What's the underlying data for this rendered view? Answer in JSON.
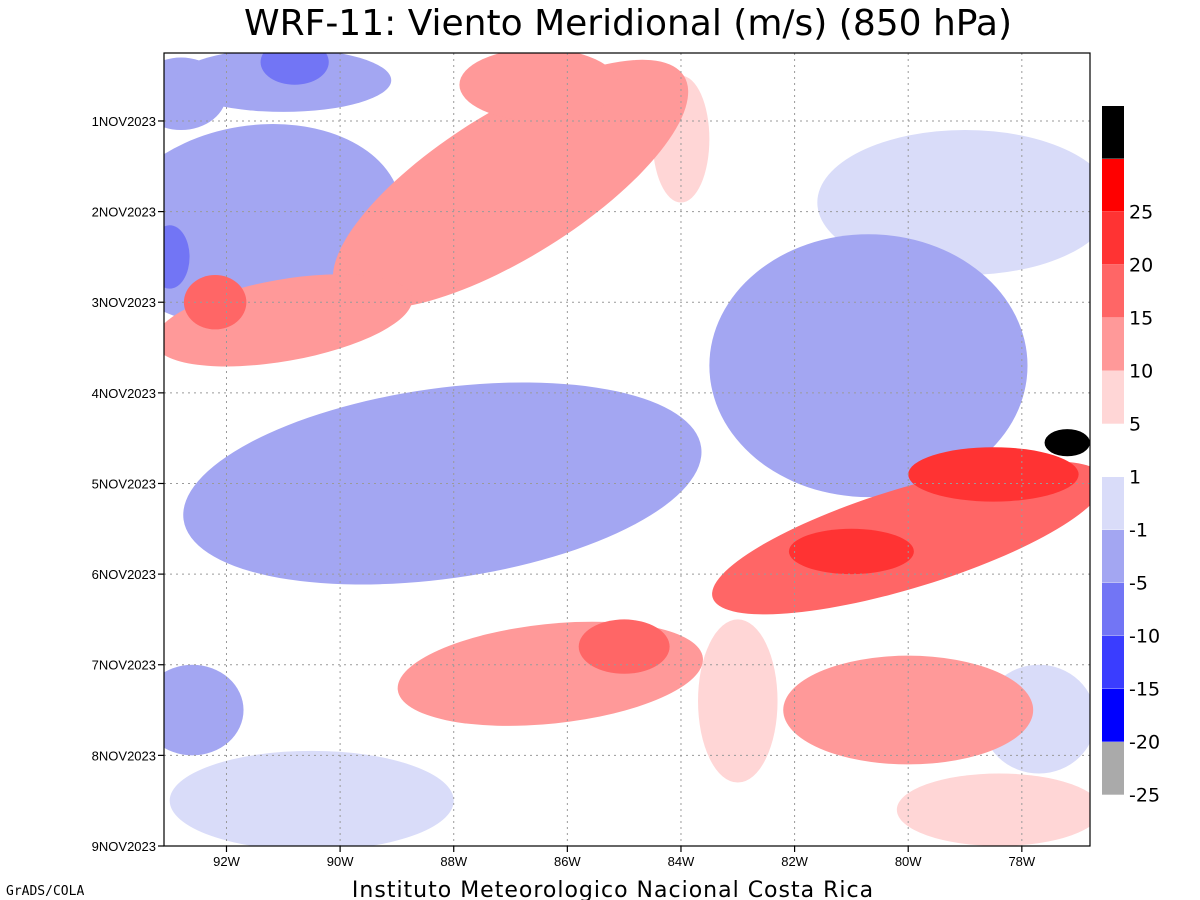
{
  "chart_data": {
    "type": "heatmap",
    "title": "WRF-11: Viento Meridional (m/s) (850 hPa)",
    "footer": "Instituto Meteorologico Nacional Costa Rica",
    "credit": "GrADS/COLA",
    "x_axis": {
      "range": [
        -93.1,
        -76.8
      ],
      "ticks": [
        {
          "value": -92,
          "label": "92W"
        },
        {
          "value": -90,
          "label": "90W"
        },
        {
          "value": -88,
          "label": "88W"
        },
        {
          "value": -86,
          "label": "86W"
        },
        {
          "value": -84,
          "label": "84W"
        },
        {
          "value": -82,
          "label": "82W"
        },
        {
          "value": -80,
          "label": "80W"
        },
        {
          "value": -78,
          "label": "78W"
        }
      ]
    },
    "y_axis": {
      "range": [
        0.25,
        9.0
      ],
      "reversed": true,
      "ticks": [
        {
          "value": 1,
          "label": "1NOV2023"
        },
        {
          "value": 2,
          "label": "2NOV2023"
        },
        {
          "value": 3,
          "label": "3NOV2023"
        },
        {
          "value": 4,
          "label": "4NOV2023"
        },
        {
          "value": 5,
          "label": "5NOV2023"
        },
        {
          "value": 6,
          "label": "6NOV2023"
        },
        {
          "value": 7,
          "label": "7NOV2023"
        },
        {
          "value": 8,
          "label": "8NOV2023"
        },
        {
          "value": 9,
          "label": "9NOV2023"
        }
      ]
    },
    "grid": true,
    "colorbar": {
      "placement": "right",
      "bins": [
        {
          "color": "#000000",
          "label": null
        },
        {
          "color": "#ff0000",
          "label": "25"
        },
        {
          "color": "#ff3333",
          "label": "20"
        },
        {
          "color": "#ff6666",
          "label": "15"
        },
        {
          "color": "#ff9999",
          "label": "10"
        },
        {
          "color": "#ffd6d6",
          "label": "5"
        },
        {
          "color": "#ffffff",
          "label": "1"
        },
        {
          "color": "#d9dcf9",
          "label": "-1"
        },
        {
          "color": "#a3a6f2",
          "label": "-5"
        },
        {
          "color": "#7275f5",
          "label": "-10"
        },
        {
          "color": "#3a3dff",
          "label": "-15"
        },
        {
          "color": "#0000ff",
          "label": "-20"
        },
        {
          "color": "#aaaaaa",
          "label": "-25"
        }
      ]
    },
    "features": [
      {
        "type": "v",
        "lon": -91.5,
        "t": 2.15,
        "rx": 2.6,
        "rt": 1.1,
        "angle": -9,
        "value": -6
      },
      {
        "type": "v",
        "lon": -91.0,
        "t": 0.55,
        "rx": 1.9,
        "rt": 0.35,
        "angle": 0,
        "value": -9
      },
      {
        "type": "v",
        "lon": -92.8,
        "t": 0.7,
        "rx": 0.8,
        "rt": 0.4,
        "angle": 0,
        "value": -7
      },
      {
        "type": "v",
        "lon": -90.8,
        "t": 0.35,
        "rx": 0.6,
        "rt": 0.25,
        "angle": 0,
        "value": -12
      },
      {
        "type": "v",
        "lon": -93.0,
        "t": 2.5,
        "rx": 0.35,
        "rt": 0.35,
        "angle": 0,
        "value": -14
      },
      {
        "type": "v",
        "lon": -88.2,
        "t": 5.0,
        "rx": 4.6,
        "rt": 1.05,
        "angle": -8,
        "value": -9
      },
      {
        "type": "v",
        "lon": -89.0,
        "t": 5.55,
        "rx": 1.8,
        "rt": 0.4,
        "angle": 0,
        "value": -8
      },
      {
        "type": "v",
        "lon": -85.8,
        "t": 4.7,
        "rx": 1.6,
        "rt": 0.5,
        "angle": 0,
        "value": -7
      },
      {
        "type": "v",
        "lon": -80.7,
        "t": 3.7,
        "rx": 2.8,
        "rt": 1.45,
        "angle": 0,
        "value": -6
      },
      {
        "type": "v",
        "lon": -79.0,
        "t": 1.9,
        "rx": 2.6,
        "rt": 0.8,
        "angle": 0,
        "value": -3
      },
      {
        "type": "v",
        "lon": -92.6,
        "t": 7.5,
        "rx": 0.9,
        "rt": 0.5,
        "angle": 0,
        "value": -7
      },
      {
        "type": "v",
        "lon": -90.5,
        "t": 8.5,
        "rx": 2.5,
        "rt": 0.55,
        "angle": 0,
        "value": -3
      },
      {
        "type": "v",
        "lon": -77.7,
        "t": 7.6,
        "rx": 1.0,
        "rt": 0.6,
        "angle": 0,
        "value": -4
      },
      {
        "type": "v",
        "lon": -87.0,
        "t": 1.7,
        "rx": 3.6,
        "rt": 0.8,
        "angle": -32,
        "value": 6
      },
      {
        "type": "v",
        "lon": -86.5,
        "t": 0.6,
        "rx": 1.4,
        "rt": 0.4,
        "angle": 0,
        "value": 9
      },
      {
        "type": "v",
        "lon": -91.0,
        "t": 3.2,
        "rx": 2.3,
        "rt": 0.45,
        "angle": -10,
        "value": 7
      },
      {
        "type": "v",
        "lon": -92.2,
        "t": 3.0,
        "rx": 0.55,
        "rt": 0.3,
        "angle": 0,
        "value": 12
      },
      {
        "type": "v",
        "lon": -86.3,
        "t": 7.1,
        "rx": 2.7,
        "rt": 0.55,
        "angle": -6,
        "value": 9
      },
      {
        "type": "v",
        "lon": -85.0,
        "t": 6.8,
        "rx": 0.8,
        "rt": 0.3,
        "angle": 0,
        "value": 11
      },
      {
        "type": "v",
        "lon": -80.0,
        "t": 5.6,
        "rx": 3.6,
        "rt": 0.55,
        "angle": -17,
        "value": 13
      },
      {
        "type": "v",
        "lon": -81.0,
        "t": 5.75,
        "rx": 1.1,
        "rt": 0.25,
        "angle": 0,
        "value": 18
      },
      {
        "type": "v",
        "lon": -78.5,
        "t": 4.9,
        "rx": 1.5,
        "rt": 0.3,
        "angle": 0,
        "value": 16
      },
      {
        "type": "v",
        "lon": -77.2,
        "t": 4.55,
        "rx": 0.4,
        "rt": 0.15,
        "angle": 0,
        "value": 26
      },
      {
        "type": "v",
        "lon": -80.0,
        "t": 7.5,
        "rx": 2.2,
        "rt": 0.6,
        "angle": 0,
        "value": 5
      },
      {
        "type": "v",
        "lon": -83.0,
        "t": 7.4,
        "rx": 0.7,
        "rt": 0.9,
        "angle": 0,
        "value": 1
      },
      {
        "type": "v",
        "lon": -84.0,
        "t": 1.2,
        "rx": 0.5,
        "rt": 0.7,
        "angle": 0,
        "value": 1
      },
      {
        "type": "v",
        "lon": -78.4,
        "t": 8.6,
        "rx": 1.8,
        "rt": 0.4,
        "angle": 0,
        "value": 4
      }
    ]
  }
}
